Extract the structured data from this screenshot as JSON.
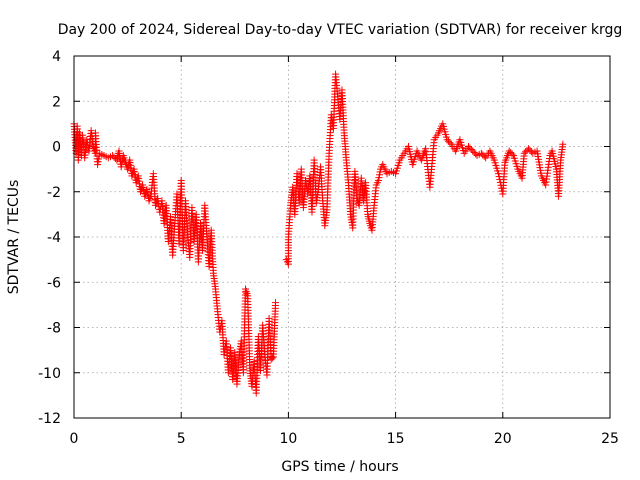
{
  "chart_data": {
    "type": "scatter",
    "title": "Day 200 of 2024, Sidereal Day-to-day VTEC variation (SDTVAR) for receiver krgg",
    "xlabel": "GPS time / hours",
    "ylabel": "SDTVAR / TECUs",
    "xlim": [
      0,
      25
    ],
    "ylim": [
      -12,
      4
    ],
    "xticks": [
      0,
      5,
      10,
      15,
      20,
      25
    ],
    "yticks": [
      -12,
      -10,
      -8,
      -6,
      -4,
      -2,
      0,
      2,
      4
    ],
    "xtick_labels": [
      "0",
      "5",
      "10",
      "15",
      "20",
      "25"
    ],
    "ytick_labels": [
      "-12",
      "-10",
      "-8",
      "-6",
      "-4",
      "-2",
      "0",
      "2",
      "4"
    ],
    "grid": true,
    "marker": "+",
    "marker_color": "#ff0000",
    "series": [
      {
        "name": "SDTVAR",
        "points": [
          [
            0.0,
            1.0
          ],
          [
            0.05,
            0.4
          ],
          [
            0.1,
            -0.3
          ],
          [
            0.15,
            0.9
          ],
          [
            0.2,
            -0.6
          ],
          [
            0.25,
            0.6
          ],
          [
            0.3,
            0.2
          ],
          [
            0.35,
            -0.4
          ],
          [
            0.4,
            0.5
          ],
          [
            0.5,
            -0.5
          ],
          [
            0.6,
            0.3
          ],
          [
            0.7,
            -0.2
          ],
          [
            0.8,
            0.7
          ],
          [
            0.9,
            0.0
          ],
          [
            1.0,
            -0.3
          ],
          [
            1.0,
            0.6
          ],
          [
            1.1,
            -0.8
          ],
          [
            1.2,
            -0.3
          ],
          [
            1.4,
            -0.4
          ],
          [
            1.6,
            -0.5
          ],
          [
            1.8,
            -0.4
          ],
          [
            2.0,
            -0.6
          ],
          [
            2.1,
            -0.2
          ],
          [
            2.2,
            -0.9
          ],
          [
            2.3,
            -0.4
          ],
          [
            2.4,
            -0.7
          ],
          [
            2.5,
            -1.0
          ],
          [
            2.6,
            -0.6
          ],
          [
            2.7,
            -1.3
          ],
          [
            2.8,
            -1.0
          ],
          [
            2.9,
            -1.6
          ],
          [
            3.0,
            -1.3
          ],
          [
            3.1,
            -2.0
          ],
          [
            3.2,
            -1.7
          ],
          [
            3.3,
            -2.2
          ],
          [
            3.4,
            -1.9
          ],
          [
            3.5,
            -2.4
          ],
          [
            3.6,
            -2.1
          ],
          [
            3.7,
            -1.2
          ],
          [
            3.8,
            -2.6
          ],
          [
            3.9,
            -2.3
          ],
          [
            4.0,
            -2.9
          ],
          [
            4.1,
            -2.4
          ],
          [
            4.2,
            -3.4
          ],
          [
            4.3,
            -2.6
          ],
          [
            4.4,
            -4.2
          ],
          [
            4.5,
            -3.1
          ],
          [
            4.6,
            -4.8
          ],
          [
            4.7,
            -3.4
          ],
          [
            4.8,
            -2.1
          ],
          [
            4.9,
            -4.3
          ],
          [
            5.0,
            -1.5
          ],
          [
            5.1,
            -4.6
          ],
          [
            5.2,
            -2.4
          ],
          [
            5.3,
            -3.9
          ],
          [
            5.4,
            -4.9
          ],
          [
            5.5,
            -2.7
          ],
          [
            5.6,
            -4.2
          ],
          [
            5.7,
            -3.0
          ],
          [
            5.8,
            -5.1
          ],
          [
            5.9,
            -3.4
          ],
          [
            6.0,
            -4.6
          ],
          [
            6.1,
            -2.6
          ],
          [
            6.2,
            -4.0
          ],
          [
            6.3,
            -5.3
          ],
          [
            6.4,
            -3.7
          ],
          [
            6.5,
            -5.6
          ],
          [
            6.6,
            -6.3
          ],
          [
            6.7,
            -7.3
          ],
          [
            6.8,
            -8.2
          ],
          [
            6.9,
            -7.7
          ],
          [
            7.0,
            -9.2
          ],
          [
            7.1,
            -8.6
          ],
          [
            7.2,
            -10.0
          ],
          [
            7.3,
            -8.9
          ],
          [
            7.4,
            -10.3
          ],
          [
            7.5,
            -9.1
          ],
          [
            7.6,
            -10.5
          ],
          [
            7.7,
            -9.3
          ],
          [
            7.8,
            -8.6
          ],
          [
            7.9,
            -10.0
          ],
          [
            8.0,
            -6.3
          ],
          [
            8.1,
            -6.6
          ],
          [
            8.2,
            -9.8
          ],
          [
            8.3,
            -10.6
          ],
          [
            8.4,
            -9.5
          ],
          [
            8.5,
            -10.9
          ],
          [
            8.6,
            -8.4
          ],
          [
            8.7,
            -9.9
          ],
          [
            8.8,
            -7.9
          ],
          [
            8.9,
            -9.2
          ],
          [
            9.0,
            -10.1
          ],
          [
            9.1,
            -7.6
          ],
          [
            9.2,
            -9.4
          ],
          [
            9.3,
            -9.3
          ],
          [
            9.4,
            -6.9
          ],
          [
            9.9,
            -5.0
          ],
          [
            10.0,
            -5.2
          ],
          [
            10.0,
            -4.0
          ],
          [
            10.1,
            -2.6
          ],
          [
            10.2,
            -1.8
          ],
          [
            10.3,
            -3.0
          ],
          [
            10.4,
            -1.2
          ],
          [
            10.5,
            -2.5
          ],
          [
            10.6,
            -1.0
          ],
          [
            10.7,
            -2.7
          ],
          [
            10.8,
            -1.5
          ],
          [
            10.9,
            -2.1
          ],
          [
            11.0,
            -1.3
          ],
          [
            11.1,
            -2.9
          ],
          [
            11.2,
            -0.6
          ],
          [
            11.3,
            -2.5
          ],
          [
            11.4,
            -1.9
          ],
          [
            11.5,
            -0.9
          ],
          [
            11.6,
            -2.4
          ],
          [
            11.7,
            -3.5
          ],
          [
            11.8,
            -2.8
          ],
          [
            11.9,
            -0.3
          ],
          [
            12.0,
            1.4
          ],
          [
            12.1,
            0.8
          ],
          [
            12.2,
            3.2
          ],
          [
            12.3,
            2.2
          ],
          [
            12.4,
            1.2
          ],
          [
            12.5,
            2.5
          ],
          [
            12.6,
            0.6
          ],
          [
            12.7,
            -0.6
          ],
          [
            12.8,
            -1.6
          ],
          [
            12.9,
            -3.0
          ],
          [
            13.0,
            -3.6
          ],
          [
            13.1,
            -1.1
          ],
          [
            13.2,
            -2.3
          ],
          [
            13.3,
            -2.6
          ],
          [
            13.4,
            -1.4
          ],
          [
            13.5,
            -2.4
          ],
          [
            13.6,
            -1.6
          ],
          [
            13.7,
            -3.0
          ],
          [
            13.8,
            -3.4
          ],
          [
            13.9,
            -3.7
          ],
          [
            14.0,
            -2.6
          ],
          [
            14.1,
            -1.7
          ],
          [
            14.2,
            -1.5
          ],
          [
            14.3,
            -1.0
          ],
          [
            14.4,
            -0.8
          ],
          [
            14.6,
            -1.2
          ],
          [
            14.8,
            -1.1
          ],
          [
            15.0,
            -1.2
          ],
          [
            15.2,
            -0.6
          ],
          [
            15.4,
            -0.3
          ],
          [
            15.6,
            0.0
          ],
          [
            15.8,
            -0.8
          ],
          [
            16.0,
            -0.2
          ],
          [
            16.2,
            -0.6
          ],
          [
            16.4,
            -0.1
          ],
          [
            16.6,
            -1.8
          ],
          [
            16.8,
            0.3
          ],
          [
            17.0,
            0.6
          ],
          [
            17.2,
            1.0
          ],
          [
            17.4,
            0.3
          ],
          [
            17.6,
            0.1
          ],
          [
            17.8,
            -0.2
          ],
          [
            18.0,
            0.3
          ],
          [
            18.2,
            -0.3
          ],
          [
            18.4,
            0.0
          ],
          [
            18.6,
            -0.2
          ],
          [
            18.8,
            -0.4
          ],
          [
            19.0,
            -0.3
          ],
          [
            19.2,
            -0.5
          ],
          [
            19.4,
            -0.2
          ],
          [
            19.6,
            -0.6
          ],
          [
            19.8,
            -1.2
          ],
          [
            20.0,
            -2.1
          ],
          [
            20.1,
            -0.7
          ],
          [
            20.3,
            -0.2
          ],
          [
            20.5,
            -0.4
          ],
          [
            20.7,
            -1.0
          ],
          [
            20.9,
            -1.4
          ],
          [
            21.0,
            -0.3
          ],
          [
            21.2,
            -0.1
          ],
          [
            21.4,
            -0.3
          ],
          [
            21.6,
            -0.2
          ],
          [
            21.8,
            -1.3
          ],
          [
            22.0,
            -1.7
          ],
          [
            22.2,
            -0.4
          ],
          [
            22.3,
            -0.2
          ],
          [
            22.5,
            -1.0
          ],
          [
            22.6,
            -2.2
          ],
          [
            22.7,
            -0.6
          ],
          [
            22.8,
            0.1
          ]
        ]
      }
    ]
  }
}
